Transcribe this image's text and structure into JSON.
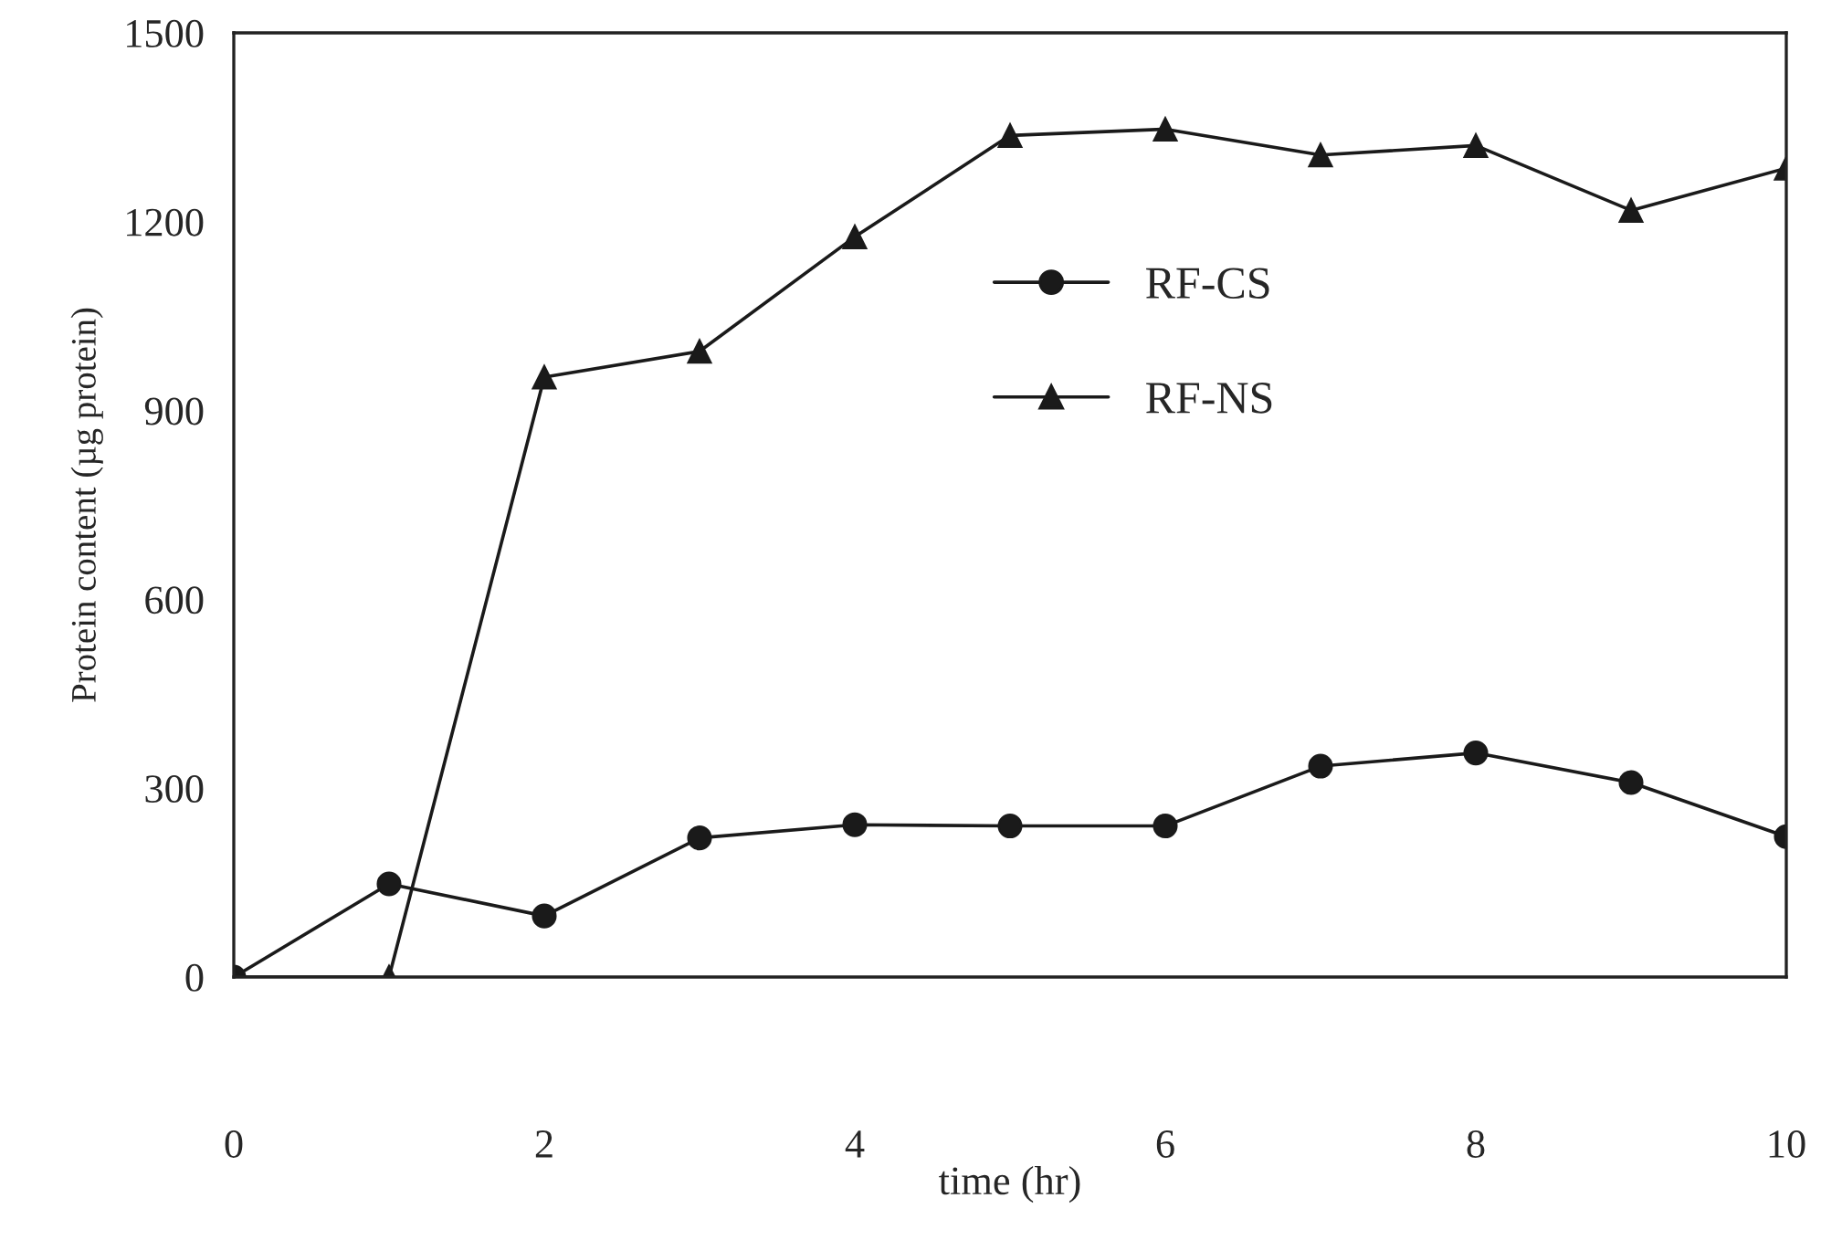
{
  "chart_data": {
    "type": "line",
    "xlabel": "time (hr)",
    "ylabel": "Protein content (µg protein)",
    "x": [
      0,
      1,
      2,
      3,
      4,
      5,
      6,
      7,
      8,
      9,
      10
    ],
    "series": [
      {
        "name": "RF-CS",
        "color": "#1a1a1a",
        "marker": "circle",
        "values": [
          0,
          148,
          97,
          221,
          242,
          240,
          240,
          335,
          356,
          309,
          223
        ]
      },
      {
        "name": "RF-NS",
        "color": "#1a1a1a",
        "marker": "triangle",
        "values": [
          0,
          0,
          953,
          994,
          1176,
          1337,
          1347,
          1306,
          1321,
          1218,
          1285
        ]
      }
    ],
    "xlim": [
      0,
      10
    ],
    "xticks": [
      0,
      2,
      4,
      6,
      8,
      10
    ],
    "ylim": [
      0,
      1500
    ],
    "yticks": [
      0,
      300,
      600,
      900,
      1200,
      1500
    ],
    "grid": false,
    "legend": "center",
    "line_style": "solid"
  }
}
